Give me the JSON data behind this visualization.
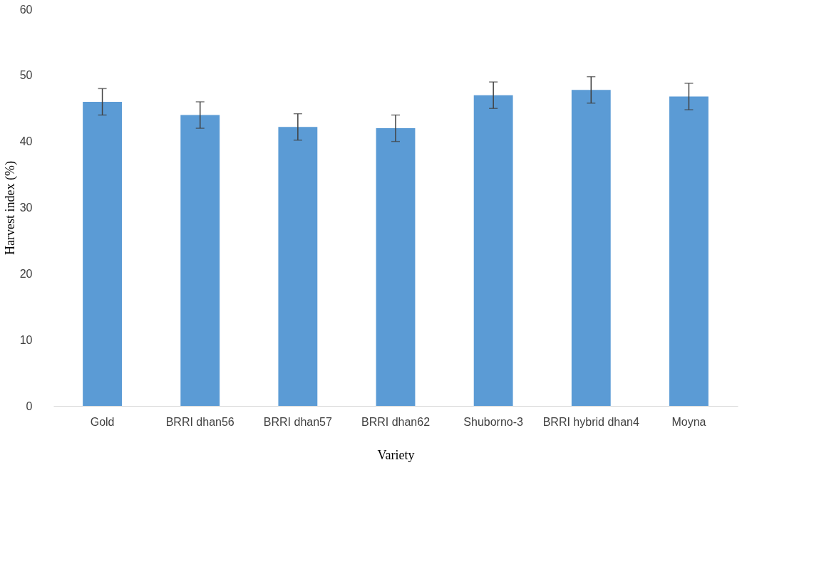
{
  "chart_data": {
    "type": "bar",
    "xlabel": "Variety",
    "ylabel": "Harvest index (%)",
    "categories": [
      "Gold",
      "BRRI dhan56",
      "BRRI dhan57",
      "BRRI dhan62",
      "Shuborno-3",
      "BRRI hybrid dhan4",
      "Moyna"
    ],
    "values": [
      46,
      44,
      42.2,
      42,
      47,
      47.8,
      46.8
    ],
    "errors": [
      2,
      2,
      2,
      2,
      2,
      2,
      2
    ],
    "color": "#5b9bd5",
    "ylim": [
      0,
      60
    ],
    "yticks": [
      0,
      10,
      20,
      30,
      40,
      50,
      60
    ],
    "grid": false
  }
}
